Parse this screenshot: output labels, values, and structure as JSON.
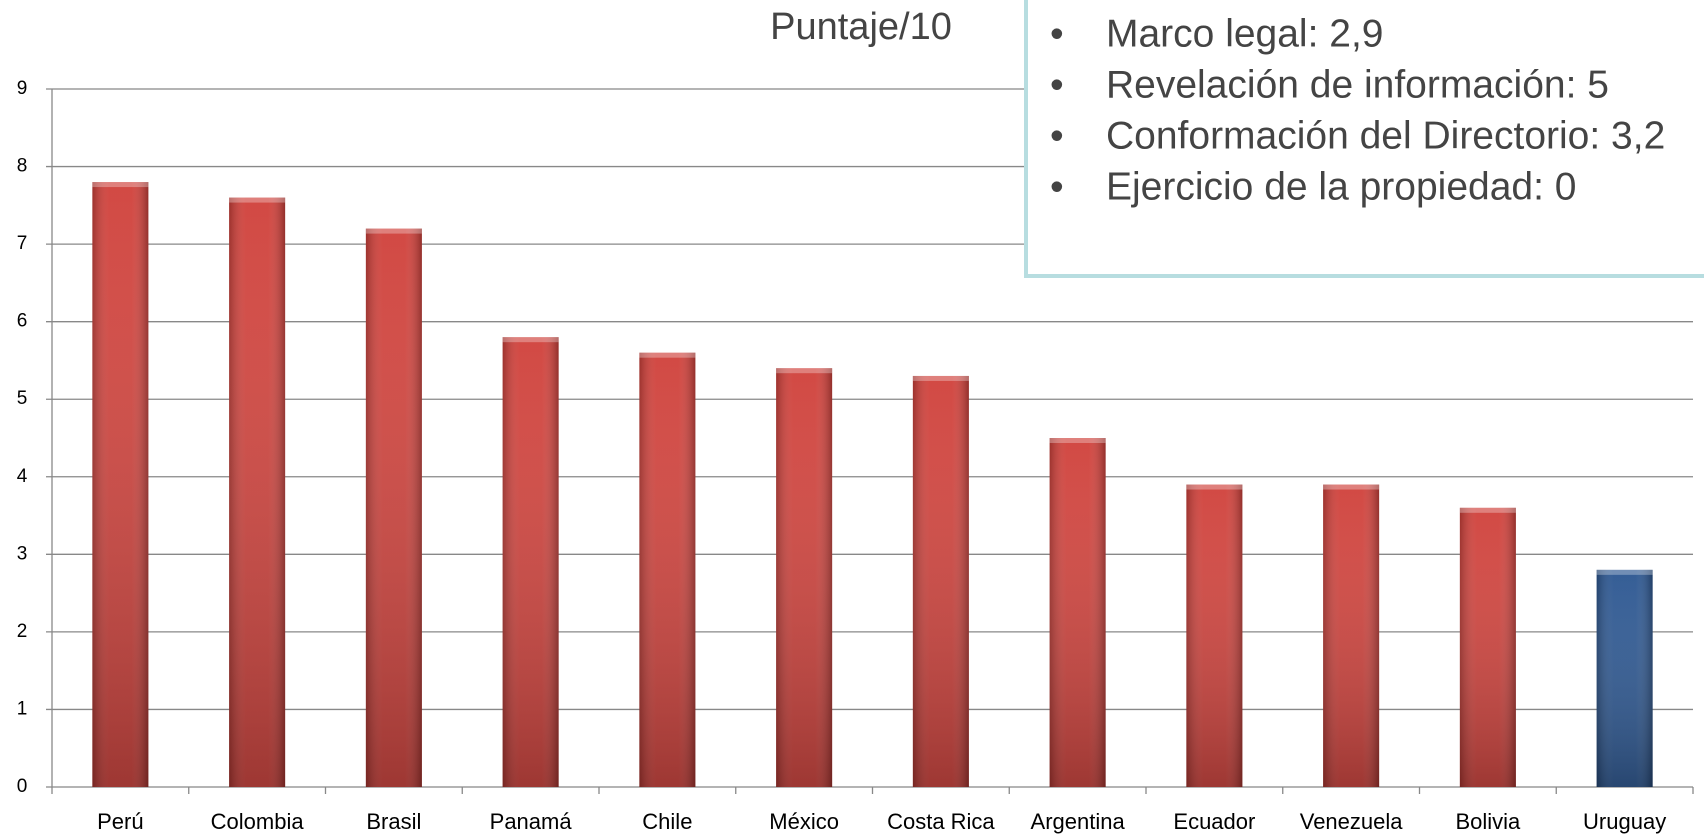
{
  "chart_data": {
    "type": "bar",
    "title": "Puntaje/10",
    "categories": [
      "Perú",
      "Colombia",
      "Brasil",
      "Panamá",
      "Chile",
      "México",
      "Costa Rica",
      "Argentina",
      "Ecuador",
      "Venezuela",
      "Bolivia",
      "Uruguay"
    ],
    "values": [
      7.8,
      7.6,
      7.2,
      5.8,
      5.6,
      5.4,
      5.3,
      4.5,
      3.9,
      3.9,
      3.6,
      2.8
    ],
    "colors": [
      "#d0403a",
      "#d0403a",
      "#d0403a",
      "#d0403a",
      "#d0403a",
      "#d0403a",
      "#d0403a",
      "#d0403a",
      "#d0403a",
      "#d0403a",
      "#d0403a",
      "#2a5590"
    ],
    "ylim": [
      0,
      9
    ],
    "yticks": [
      0,
      1,
      2,
      3,
      4,
      5,
      6,
      7,
      8,
      9
    ],
    "grid": true,
    "annotations": [
      "Marco legal: 2,9",
      "Revelación de información: 5",
      "Conformación del Directorio: 3,2",
      "Ejercicio de la propiedad: 0"
    ]
  }
}
